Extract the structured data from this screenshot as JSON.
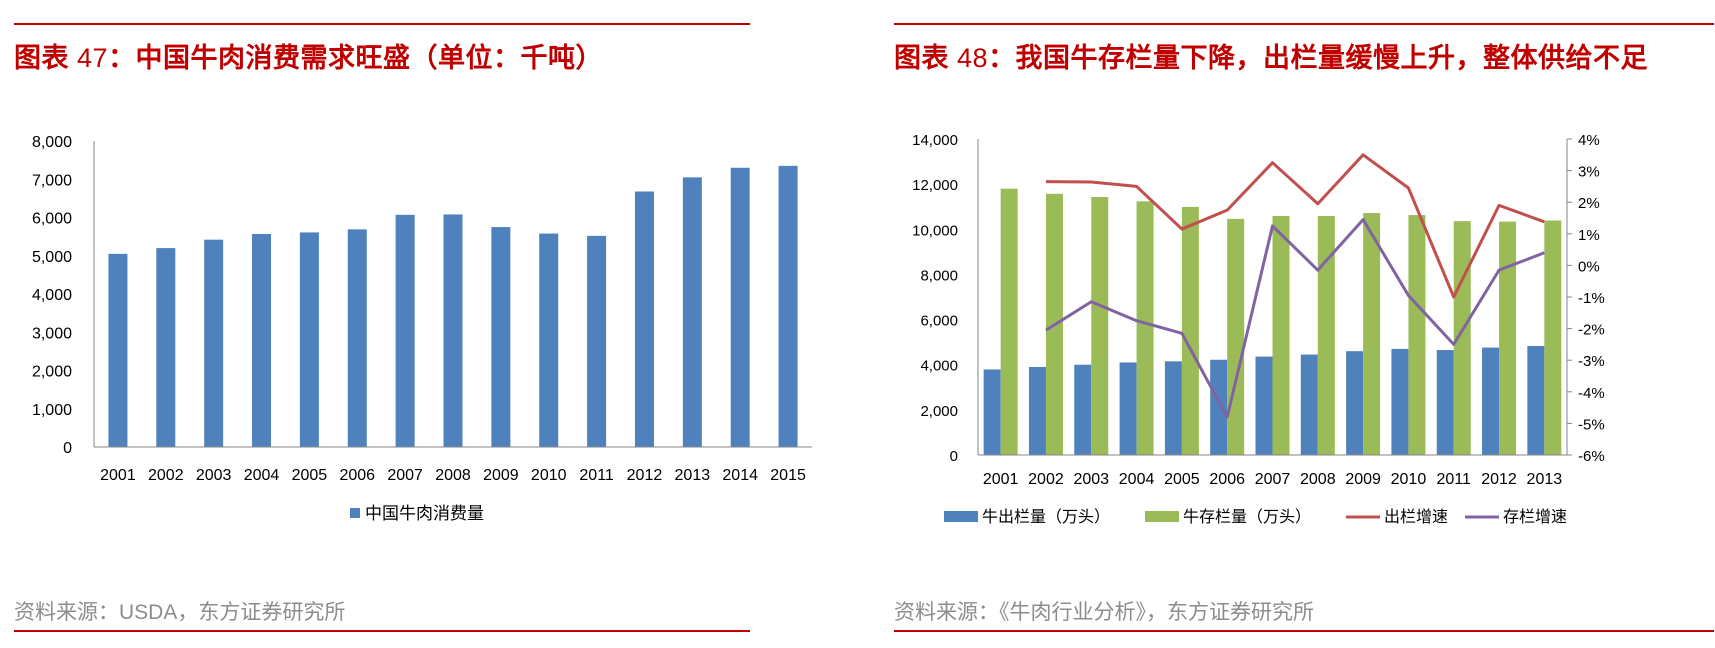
{
  "left": {
    "title_prefix": "图表",
    "title_num": "47",
    "title_text": "：中国牛肉消费需求旺盛（单位：千吨）",
    "source": "资料来源：USDA，东方证券研究所"
  },
  "right": {
    "title_prefix": "图表",
    "title_num": "48",
    "title_text": "：我国牛存栏量下降，出栏量缓慢上升，整体供给不足",
    "source": "资料来源：《牛肉行业分析》，东方证券研究所"
  },
  "colors": {
    "red": "#c00000",
    "blue": "#4f81bd",
    "green": "#9bbb59",
    "line_red": "#c0504d",
    "line_purple": "#8064a2",
    "source_gray": "#8c8c8c"
  },
  "chart_data": [
    {
      "type": "bar",
      "title": "图表 47：中国牛肉消费需求旺盛（单位：千吨）",
      "categories": [
        "2001",
        "2002",
        "2003",
        "2004",
        "2005",
        "2006",
        "2007",
        "2008",
        "2009",
        "2010",
        "2011",
        "2012",
        "2013",
        "2014",
        "2015"
      ],
      "series": [
        {
          "name": "中国牛肉消费量",
          "values": [
            5050,
            5200,
            5420,
            5570,
            5610,
            5690,
            6070,
            6080,
            5750,
            5580,
            5520,
            6680,
            7050,
            7300,
            7350
          ]
        }
      ],
      "ylim": [
        0,
        8000
      ],
      "yticks": [
        0,
        1000,
        2000,
        3000,
        4000,
        5000,
        6000,
        7000,
        8000
      ],
      "ytick_labels": [
        "0",
        "1,000",
        "2,000",
        "3,000",
        "4,000",
        "5,000",
        "6,000",
        "7,000",
        "8,000"
      ],
      "legend_position": "bottom"
    },
    {
      "type": "bar+line",
      "title": "图表 48：我国牛存栏量下降，出栏量缓慢上升，整体供给不足",
      "categories": [
        "2001",
        "2002",
        "2003",
        "2004",
        "2005",
        "2006",
        "2007",
        "2008",
        "2009",
        "2010",
        "2011",
        "2012",
        "2013"
      ],
      "series": [
        {
          "name": "牛出栏量（万头）",
          "type": "bar",
          "axis": "left",
          "values": [
            3790,
            3900,
            4000,
            4100,
            4150,
            4220,
            4360,
            4450,
            4600,
            4700,
            4650,
            4760,
            4830
          ]
        },
        {
          "name": "牛存栏量（万头）",
          "type": "bar",
          "axis": "left",
          "values": [
            11800,
            11570,
            11430,
            11240,
            10990,
            10460,
            10590,
            10590,
            10720,
            10630,
            10360,
            10340,
            10390
          ]
        },
        {
          "name": "出栏增速",
          "type": "line",
          "axis": "right",
          "values": [
            null,
            2.65,
            2.64,
            2.5,
            1.15,
            1.75,
            3.25,
            1.95,
            3.5,
            2.45,
            -1.0,
            1.9,
            1.38
          ]
        },
        {
          "name": "存栏增速",
          "type": "line",
          "axis": "right",
          "values": [
            null,
            -2.05,
            -1.15,
            -1.75,
            -2.15,
            -4.8,
            1.25,
            -0.15,
            1.45,
            -0.95,
            -2.5,
            -0.15,
            0.4
          ]
        }
      ],
      "ylim_left": [
        0,
        14000
      ],
      "yticks_left": [
        0,
        2000,
        4000,
        6000,
        8000,
        10000,
        12000,
        14000
      ],
      "ytick_labels_left": [
        "0",
        "2,000",
        "4,000",
        "6,000",
        "8,000",
        "10,000",
        "12,000",
        "14,000"
      ],
      "ylim_right": [
        -6,
        4
      ],
      "yticks_right": [
        -6,
        -5,
        -4,
        -3,
        -2,
        -1,
        0,
        1,
        2,
        3,
        4
      ],
      "ytick_labels_right": [
        "-6%",
        "-5%",
        "-4%",
        "-3%",
        "-2%",
        "-1%",
        "0%",
        "1%",
        "2%",
        "3%",
        "4%"
      ],
      "legend_position": "bottom"
    }
  ]
}
